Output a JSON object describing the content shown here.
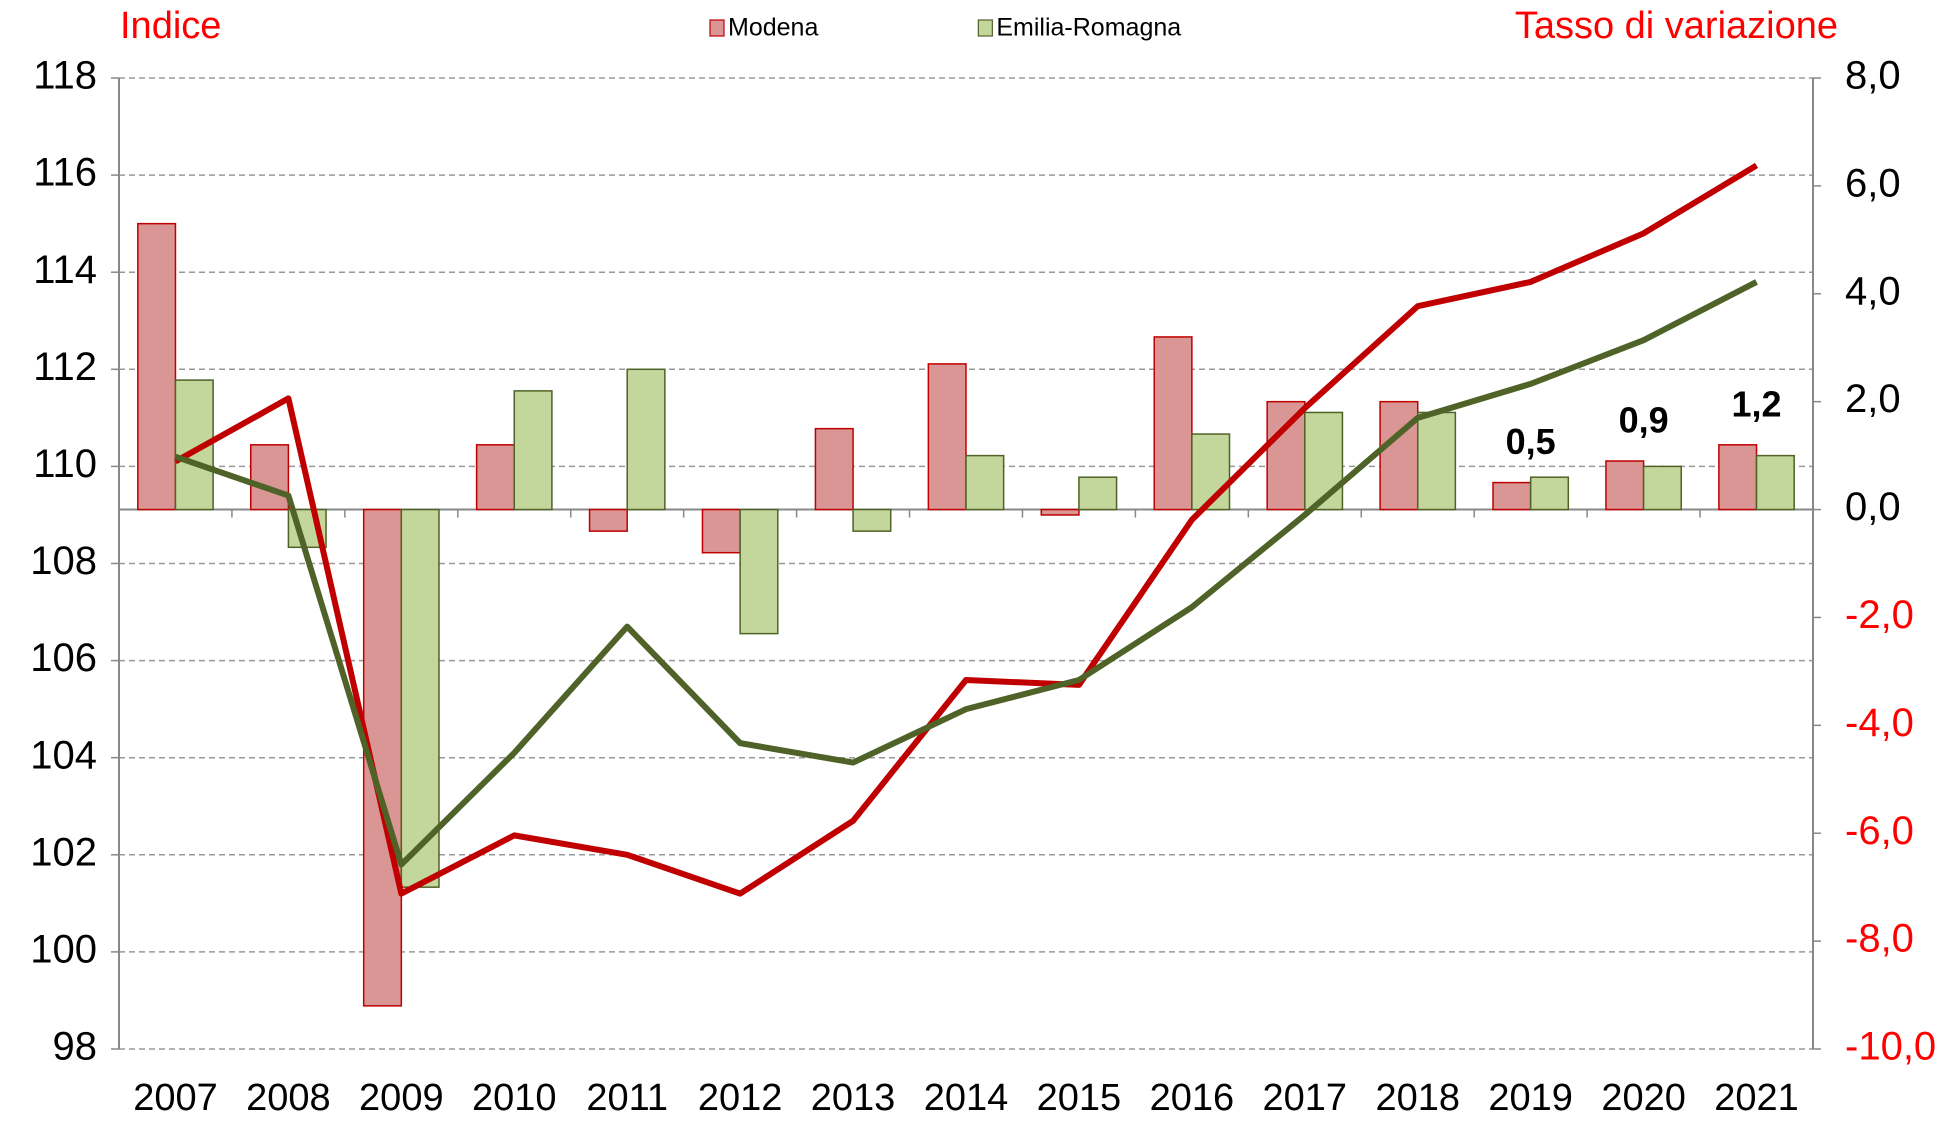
{
  "chart_data": {
    "type": "bar",
    "ylabel": "Indice",
    "y2label": "Tasso di variazione",
    "categories": [
      "2007",
      "2008",
      "2009",
      "2010",
      "2011",
      "2012",
      "2013",
      "2014",
      "2015",
      "2016",
      "2017",
      "2018",
      "2019",
      "2020",
      "2021"
    ],
    "series": [
      {
        "name": "Modena",
        "type": "bar",
        "axis": "y2",
        "color": "#d99694",
        "edge": "#c00000",
        "values": [
          5.3,
          1.2,
          -9.2,
          1.2,
          -0.4,
          -0.8,
          1.5,
          2.7,
          -0.1,
          3.2,
          2.0,
          2.0,
          0.5,
          0.9,
          1.2
        ],
        "value_labels": [
          null,
          null,
          null,
          null,
          null,
          null,
          null,
          null,
          null,
          null,
          null,
          null,
          "0,5",
          "0,9",
          "1,2"
        ]
      },
      {
        "name": "Emilia-Romagna",
        "type": "bar",
        "axis": "y2",
        "color": "#c3d69b",
        "edge": "#4f6228",
        "values": [
          2.4,
          -0.7,
          -7.0,
          2.2,
          2.6,
          -2.3,
          -0.4,
          1.0,
          0.6,
          1.4,
          1.8,
          1.8,
          0.6,
          0.8,
          1.0
        ]
      },
      {
        "type": "line",
        "color": "#c00000",
        "values": [
          110.1,
          111.4,
          101.2,
          102.4,
          102.0,
          101.2,
          102.7,
          105.6,
          105.5,
          108.9,
          111.2,
          113.3,
          113.8,
          114.8,
          116.2
        ]
      },
      {
        "type": "line",
        "color": "#4f6228",
        "values": [
          110.2,
          109.4,
          101.8,
          104.1,
          106.7,
          104.3,
          103.9,
          105.0,
          105.6,
          107.1,
          109.0,
          111.0,
          111.7,
          112.6,
          113.8
        ]
      }
    ],
    "ylim": [
      98,
      118
    ],
    "yticks": [
      98,
      100,
      102,
      104,
      106,
      108,
      110,
      112,
      114,
      116,
      118
    ],
    "y2lim": [
      -10,
      8
    ],
    "y2ticks": [
      {
        "value": -10,
        "label": "-10,0"
      },
      {
        "value": -8,
        "label": "-8,0"
      },
      {
        "value": -6,
        "label": "-6,0"
      },
      {
        "value": -4,
        "label": "-4,0"
      },
      {
        "value": -2,
        "label": "-2,0"
      },
      {
        "value": 0,
        "label": "0,0"
      },
      {
        "value": 2,
        "label": "2,0"
      },
      {
        "value": 4,
        "label": "4,0"
      },
      {
        "value": 6,
        "label": "6,0"
      },
      {
        "value": 8,
        "label": "8,0"
      }
    ],
    "y2tick_negative_color": "#ff0000",
    "grid": true,
    "legend": "top"
  }
}
